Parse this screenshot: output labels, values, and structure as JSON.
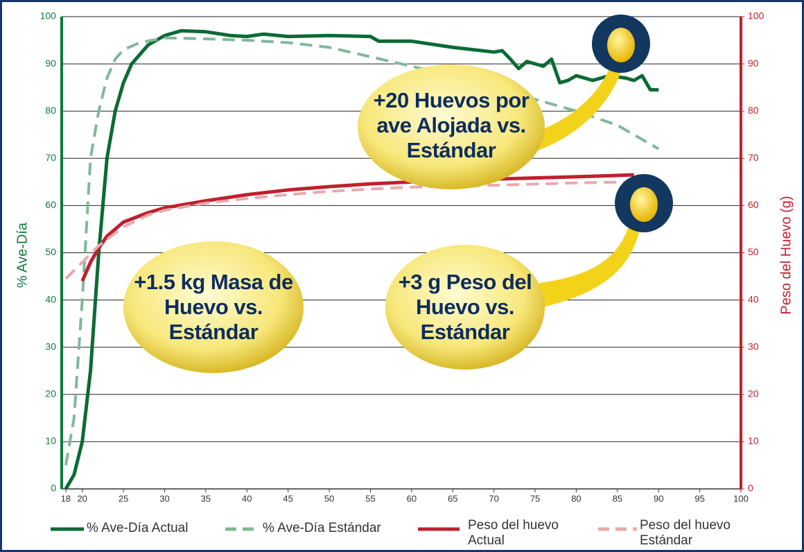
{
  "chart_data": {
    "type": "line",
    "ylabel": "% Ave-Día",
    "y2label": "Peso del Huevo (g)",
    "xlim": [
      17.5,
      100
    ],
    "xticks": [
      18,
      20,
      25,
      30,
      35,
      40,
      45,
      50,
      55,
      60,
      65,
      70,
      75,
      80,
      85,
      90,
      95,
      100
    ],
    "ylim": [
      0,
      100
    ],
    "yticks": [
      0,
      10,
      20,
      30,
      40,
      50,
      60,
      70,
      80,
      90,
      100
    ],
    "y2lim": [
      0,
      100
    ],
    "y2ticks": [
      0,
      10,
      20,
      30,
      40,
      50,
      60,
      70,
      80,
      90,
      100
    ],
    "grid": true,
    "annotations": [
      "+20 Huevos por ave Alojada vs. Estándar",
      "+1.5 kg Masa de Huevo vs. Estándar",
      "+3 g Peso del Huevo vs. Estándar"
    ],
    "series": [
      {
        "name": "% Ave-Día Actual",
        "color": "#0b6b34",
        "dash": false,
        "x": [
          18,
          19,
          20,
          21,
          22,
          23,
          24,
          25,
          26,
          28,
          30,
          32,
          35,
          38,
          40,
          42,
          45,
          50,
          55,
          56,
          60,
          65,
          70,
          71,
          72,
          73,
          74,
          75,
          76,
          77,
          78,
          79,
          80,
          82,
          84,
          86,
          87,
          88,
          89,
          90
        ],
        "values": [
          0,
          3,
          10,
          25,
          50,
          70,
          80,
          86,
          90,
          94,
          96,
          97,
          96.8,
          96,
          95.8,
          96.3,
          95.8,
          96,
          95.8,
          94.8,
          94.8,
          93.5,
          92.5,
          92.8,
          91,
          89,
          90.5,
          90,
          89.5,
          91,
          86,
          86.5,
          87.5,
          86.5,
          87.5,
          87,
          86.5,
          87.5,
          84.5,
          84.5
        ]
      },
      {
        "name": "% Ave-Día Estándar",
        "color": "#7fb89a",
        "dash": true,
        "x": [
          18,
          19,
          20,
          21,
          22,
          23,
          24,
          25,
          27,
          30,
          35,
          40,
          45,
          50,
          55,
          60,
          65,
          70,
          75,
          80,
          85,
          90
        ],
        "values": [
          5,
          15,
          40,
          70,
          80,
          87,
          91,
          93,
          94.5,
          95.5,
          95.3,
          95,
          94.5,
          93.5,
          91.5,
          89.5,
          87.5,
          85,
          82.5,
          80,
          77,
          72
        ]
      },
      {
        "name": "Peso del huevo Actual",
        "color": "#c0202e",
        "dash": false,
        "axis": "y2",
        "x": [
          20,
          21,
          22,
          23,
          25,
          28,
          30,
          35,
          40,
          45,
          50,
          55,
          60,
          70,
          80,
          87
        ],
        "values": [
          44,
          48,
          51,
          53.5,
          56.5,
          58.5,
          59.5,
          61,
          62.3,
          63.3,
          64,
          64.6,
          65,
          65.6,
          66.1,
          66.5
        ]
      },
      {
        "name": "Peso del huevo Estándar",
        "color": "#e8a9ae",
        "dash": true,
        "axis": "y2",
        "x": [
          18,
          20,
          22,
          25,
          28,
          30,
          35,
          40,
          45,
          50,
          55,
          60,
          70,
          80,
          87
        ],
        "values": [
          44.5,
          48,
          51.5,
          55.5,
          58,
          59,
          60.5,
          61.5,
          62.3,
          63,
          63.5,
          63.9,
          64.3,
          64.8,
          65
        ]
      }
    ]
  }
}
